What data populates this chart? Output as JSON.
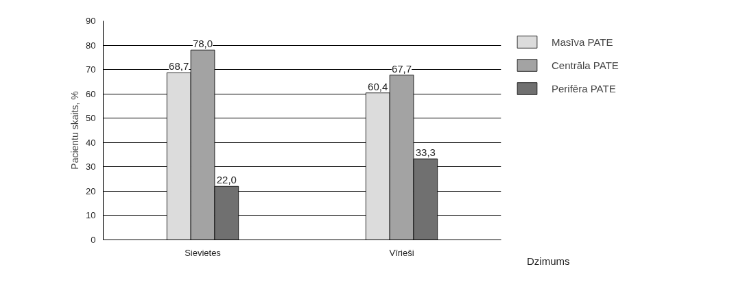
{
  "chart_data": {
    "type": "bar",
    "ylabel": "Pacientu skaits, %",
    "xlabel": "Dzimums",
    "categories": [
      "Sievietes",
      "Vīrieši"
    ],
    "series": [
      {
        "name": "Masīva PATE",
        "color": "#dcdcdc",
        "values": [
          68.7,
          60.4
        ],
        "value_labels": [
          "68,7",
          "60,4"
        ]
      },
      {
        "name": "Centrāla PATE",
        "color": "#a3a3a3",
        "values": [
          78.0,
          67.7
        ],
        "value_labels": [
          "78,0",
          "67,7"
        ]
      },
      {
        "name": "Perifēra PATE",
        "color": "#707070",
        "values": [
          22.0,
          33.3
        ],
        "value_labels": [
          "22,0",
          "33,3"
        ]
      }
    ],
    "ylim": [
      0,
      90
    ],
    "yticks": [
      0,
      10,
      20,
      30,
      40,
      50,
      60,
      70,
      80,
      90
    ],
    "grid": "y",
    "legend": "right"
  }
}
